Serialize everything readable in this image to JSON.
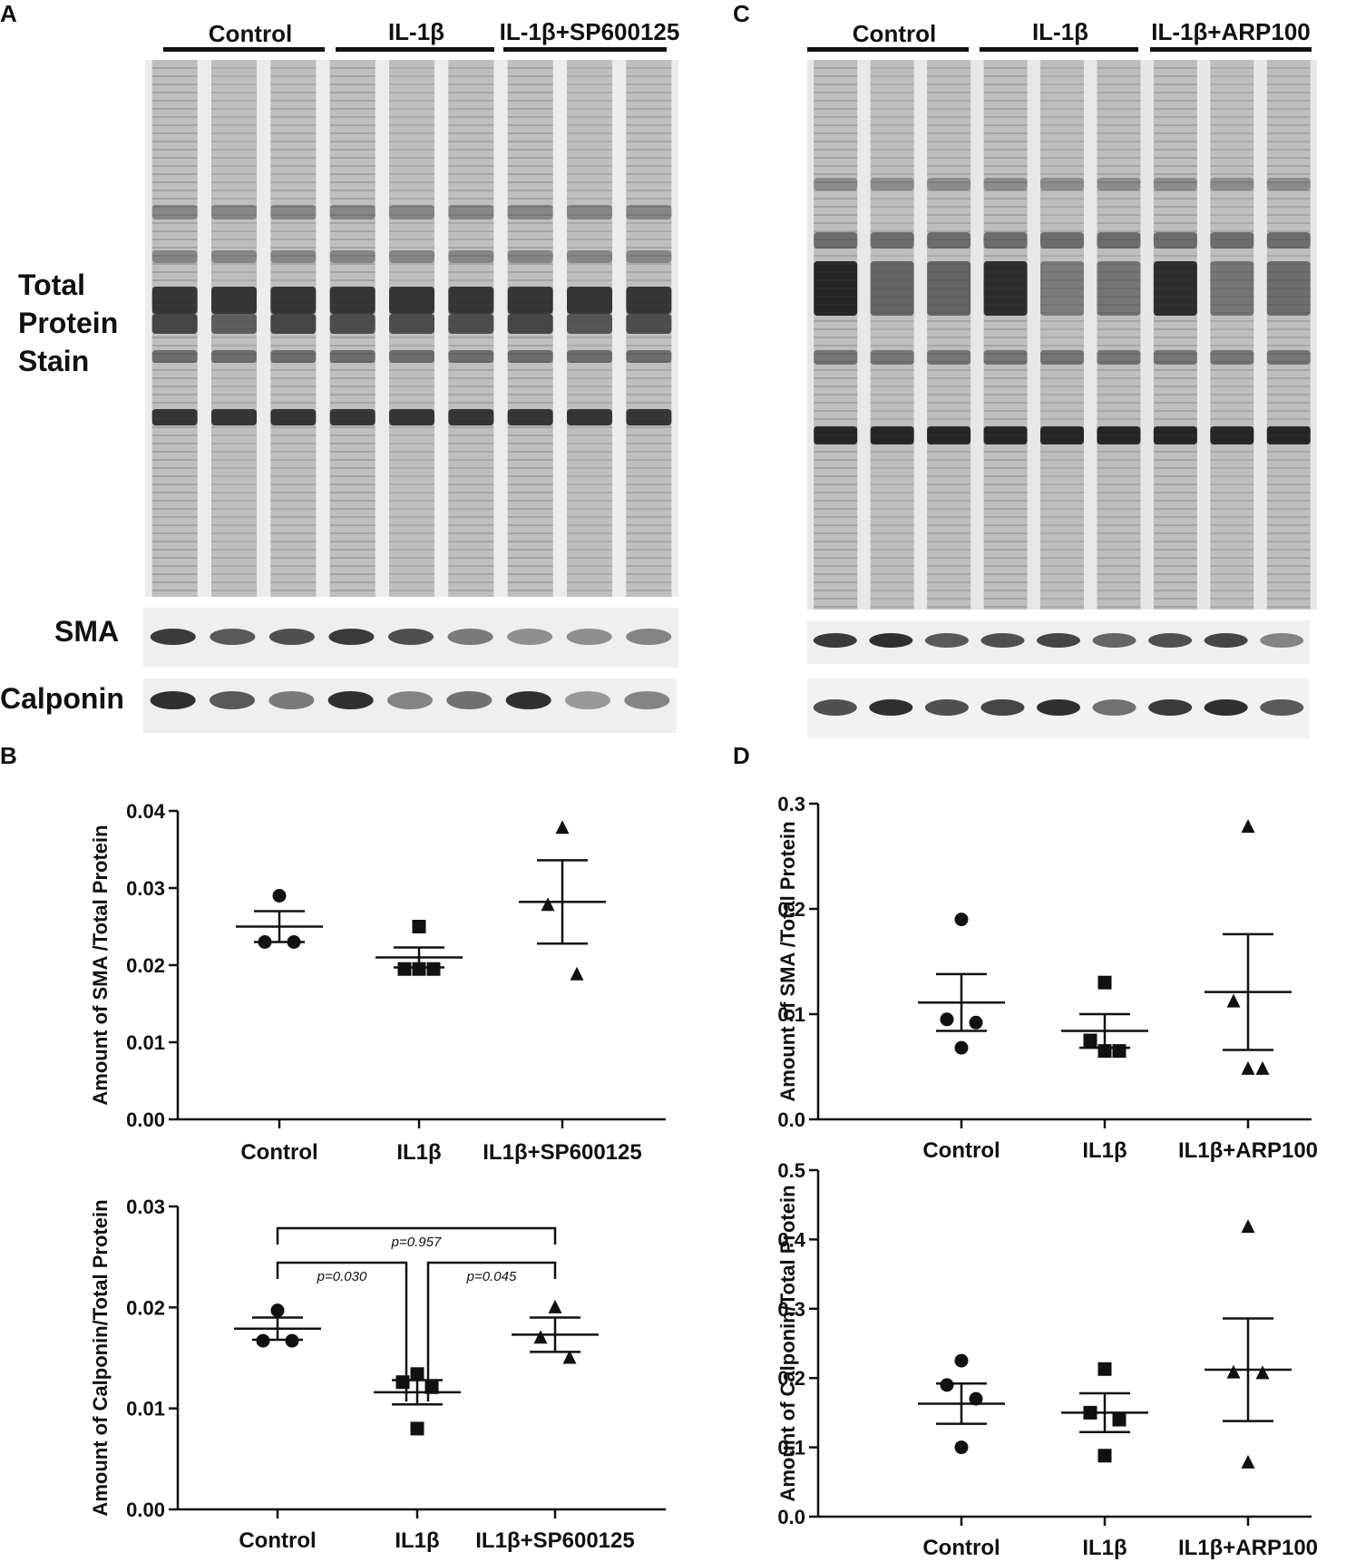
{
  "panels": {
    "A": {
      "letter": "A",
      "groups": [
        "Control",
        "IL-1β",
        "IL-1β+SP600125"
      ],
      "row_labels": {
        "total": "Total\nProtein\nStain",
        "sma": "SMA",
        "calponin": "Calponin"
      }
    },
    "B": {
      "letter": "B"
    },
    "C": {
      "letter": "C",
      "groups": [
        "Control",
        "IL-1β",
        "IL-1β+ARP100"
      ]
    },
    "D": {
      "letter": "D"
    }
  },
  "colors": {
    "ink": "#111111",
    "blot_bg": "#e9e9e9",
    "band": "#1a1a1a"
  },
  "chart_data": [
    {
      "id": "B-top",
      "type": "scatter",
      "title": "",
      "ylabel": "Amount of SMA /Total  Protein",
      "categories": [
        "Control",
        "IL1β",
        "IL1β+SP600125"
      ],
      "ylim": [
        0,
        0.04
      ],
      "yticks": [
        "0.00",
        "0.01",
        "0.02",
        "0.03",
        "0.04"
      ],
      "ytick_values": [
        0,
        0.01,
        0.02,
        0.03,
        0.04
      ],
      "series": [
        {
          "marker": "circle",
          "points": [
            0.029,
            0.023,
            0.023
          ],
          "mean": 0.025,
          "err": 0.002
        },
        {
          "marker": "square",
          "points": [
            0.025,
            0.0195,
            0.0195,
            0.0195
          ],
          "mean": 0.021,
          "err": 0.0013
        },
        {
          "marker": "triangle",
          "points": [
            0.0378,
            0.0278,
            0.0188
          ],
          "mean": 0.0282,
          "err": 0.0054
        }
      ],
      "annotations": []
    },
    {
      "id": "B-bottom",
      "type": "scatter",
      "title": "",
      "ylabel": "Amount of Calponin/Total Protein",
      "categories": [
        "Control",
        "IL1β",
        "IL1β+SP600125"
      ],
      "ylim": [
        0,
        0.03
      ],
      "yticks": [
        "0.00",
        "0.01",
        "0.02",
        "0.03"
      ],
      "ytick_values": [
        0,
        0.01,
        0.02,
        0.03
      ],
      "series": [
        {
          "marker": "circle",
          "points": [
            0.0197,
            0.0167,
            0.0167
          ],
          "mean": 0.0179,
          "err": 0.0011
        },
        {
          "marker": "square",
          "points": [
            0.0134,
            0.0126,
            0.0121,
            0.008
          ],
          "mean": 0.0116,
          "err": 0.0012
        },
        {
          "marker": "triangle",
          "points": [
            0.02,
            0.017,
            0.015
          ],
          "mean": 0.0173,
          "err": 0.0017
        }
      ],
      "annotations": [
        {
          "from": 0,
          "to": 2,
          "label": "p=0.957"
        },
        {
          "from": 0,
          "to": 1,
          "label": "p=0.030"
        },
        {
          "from": 1,
          "to": 2,
          "label": "p=0.045"
        }
      ]
    },
    {
      "id": "D-top",
      "type": "scatter",
      "title": "",
      "ylabel": "Amount of SMA /Total  Protein",
      "categories": [
        "Control",
        "IL1β",
        "IL1β+ARP100"
      ],
      "ylim": [
        0,
        0.3
      ],
      "yticks": [
        "0.0",
        "0.1",
        "0.2",
        "0.3"
      ],
      "ytick_values": [
        0,
        0.1,
        0.2,
        0.3
      ],
      "series": [
        {
          "marker": "circle",
          "points": [
            0.19,
            0.095,
            0.092,
            0.068
          ],
          "mean": 0.111,
          "err": 0.027
        },
        {
          "marker": "square",
          "points": [
            0.13,
            0.075,
            0.065,
            0.065
          ],
          "mean": 0.084,
          "err": 0.016
        },
        {
          "marker": "triangle",
          "points": [
            0.278,
            0.112,
            0.048,
            0.048
          ],
          "mean": 0.121,
          "err": 0.055
        }
      ],
      "annotations": []
    },
    {
      "id": "D-bottom",
      "type": "scatter",
      "title": "",
      "ylabel": "Amount of Calponin/Total Protein",
      "categories": [
        "Control",
        "IL1β",
        "IL1β+ARP100"
      ],
      "ylim": [
        0,
        0.5
      ],
      "yticks": [
        "0.0",
        "0.1",
        "0.2",
        "0.3",
        "0.4",
        "0.5"
      ],
      "ytick_values": [
        0,
        0.1,
        0.2,
        0.3,
        0.4,
        0.5
      ],
      "series": [
        {
          "marker": "circle",
          "points": [
            0.225,
            0.19,
            0.17,
            0.1
          ],
          "mean": 0.163,
          "err": 0.029
        },
        {
          "marker": "square",
          "points": [
            0.213,
            0.15,
            0.14,
            0.088
          ],
          "mean": 0.15,
          "err": 0.028
        },
        {
          "marker": "triangle",
          "points": [
            0.418,
            0.208,
            0.207,
            0.078
          ],
          "mean": 0.212,
          "err": 0.074
        }
      ],
      "annotations": []
    }
  ]
}
